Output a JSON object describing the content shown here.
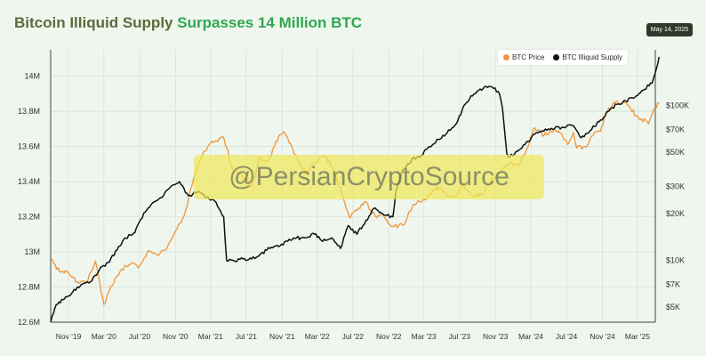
{
  "header": {
    "title_part1": "Bitcoin Illiquid Supply",
    "title_part2": "Surpasses 14 Million BTC",
    "date_badge": "May 14, 2025"
  },
  "watermark": "@PersianCryptoSource",
  "colors": {
    "btc_price": "#f0953a",
    "illiquid_supply": "#111111",
    "grid": "#d6e4d6"
  },
  "chart_data": {
    "type": "line",
    "legend": {
      "position": "top-right",
      "entries": [
        "BTC Price",
        "BTC Illiquid Supply"
      ]
    },
    "grid": true,
    "x_range": [
      "2019-09",
      "2025-05"
    ],
    "x_ticks": [
      {
        "label": "Nov '19",
        "date": "2019-11"
      },
      {
        "label": "Mar '20",
        "date": "2020-03"
      },
      {
        "label": "Jul '20",
        "date": "2020-07"
      },
      {
        "label": "Nov '20",
        "date": "2020-11"
      },
      {
        "label": "Mar '21",
        "date": "2021-03"
      },
      {
        "label": "Jul '21",
        "date": "2021-07"
      },
      {
        "label": "Nov '21",
        "date": "2021-11"
      },
      {
        "label": "Mar '22",
        "date": "2022-03"
      },
      {
        "label": "Jul '22",
        "date": "2022-07"
      },
      {
        "label": "Nov '22",
        "date": "2022-11"
      },
      {
        "label": "Mar '23",
        "date": "2023-03"
      },
      {
        "label": "Jul '23",
        "date": "2023-07"
      },
      {
        "label": "Nov '23",
        "date": "2023-11"
      },
      {
        "label": "Mar '24",
        "date": "2024-03"
      },
      {
        "label": "Jul '24",
        "date": "2024-07"
      },
      {
        "label": "Nov '24",
        "date": "2024-11"
      },
      {
        "label": "Mar '25",
        "date": "2025-03"
      }
    ],
    "y_left": {
      "range": [
        12600000,
        14100000
      ],
      "ticks": [
        {
          "label": "12.6M",
          "value": 12600000
        },
        {
          "label": "12.8M",
          "value": 12800000
        },
        {
          "label": "13M",
          "value": 13000000
        },
        {
          "label": "13.2M",
          "value": 13200000
        },
        {
          "label": "13.4M",
          "value": 13400000
        },
        {
          "label": "13.6M",
          "value": 13600000
        },
        {
          "label": "13.8M",
          "value": 13800000
        },
        {
          "label": "14M",
          "value": 14000000
        }
      ]
    },
    "y_right": {
      "scale": "log",
      "range": [
        4000,
        200000
      ],
      "ticks": [
        {
          "label": "$5K",
          "value": 5000
        },
        {
          "label": "$7K",
          "value": 7000
        },
        {
          "label": "$10K",
          "value": 10000
        },
        {
          "label": "$20K",
          "value": 20000
        },
        {
          "label": "$30K",
          "value": 30000
        },
        {
          "label": "$50K",
          "value": 50000
        },
        {
          "label": "$70K",
          "value": 70000
        },
        {
          "label": "$100K",
          "value": 100000
        }
      ]
    },
    "series": [
      {
        "name": "BTC Price",
        "axis": "right",
        "points": [
          [
            "2019-09-01",
            10200
          ],
          [
            "2019-10-01",
            8500
          ],
          [
            "2019-11-01",
            8400
          ],
          [
            "2019-12-01",
            7300
          ],
          [
            "2020-01-01",
            7200
          ],
          [
            "2020-02-01",
            9900
          ],
          [
            "2020-03-01",
            5200
          ],
          [
            "2020-03-20",
            6400
          ],
          [
            "2020-05-01",
            8800
          ],
          [
            "2020-06-01",
            9500
          ],
          [
            "2020-07-01",
            9200
          ],
          [
            "2020-08-01",
            11600
          ],
          [
            "2020-09-01",
            10800
          ],
          [
            "2020-10-01",
            11800
          ],
          [
            "2020-11-01",
            15500
          ],
          [
            "2020-12-01",
            19500
          ],
          [
            "2021-01-01",
            33000
          ],
          [
            "2021-02-01",
            48000
          ],
          [
            "2021-03-01",
            57000
          ],
          [
            "2021-04-15",
            62000
          ],
          [
            "2021-05-20",
            37000
          ],
          [
            "2021-06-15",
            36000
          ],
          [
            "2021-07-20",
            30000
          ],
          [
            "2021-08-15",
            46000
          ],
          [
            "2021-09-15",
            44000
          ],
          [
            "2021-10-20",
            63000
          ],
          [
            "2021-11-10",
            67000
          ],
          [
            "2021-12-15",
            48000
          ],
          [
            "2022-01-20",
            36000
          ],
          [
            "2022-02-15",
            42000
          ],
          [
            "2022-03-28",
            47000
          ],
          [
            "2022-04-20",
            40000
          ],
          [
            "2022-05-20",
            29000
          ],
          [
            "2022-06-18",
            19000
          ],
          [
            "2022-07-15",
            21000
          ],
          [
            "2022-08-10",
            24000
          ],
          [
            "2022-09-15",
            19500
          ],
          [
            "2022-10-15",
            19300
          ],
          [
            "2022-11-10",
            16500
          ],
          [
            "2022-12-20",
            16800
          ],
          [
            "2023-01-20",
            22000
          ],
          [
            "2023-02-15",
            24000
          ],
          [
            "2023-03-15",
            26000
          ],
          [
            "2023-04-15",
            30000
          ],
          [
            "2023-05-15",
            27000
          ],
          [
            "2023-06-15",
            25500
          ],
          [
            "2023-07-10",
            30500
          ],
          [
            "2023-08-20",
            26000
          ],
          [
            "2023-09-15",
            26500
          ],
          [
            "2023-10-25",
            34000
          ],
          [
            "2023-11-20",
            37000
          ],
          [
            "2023-12-15",
            42000
          ],
          [
            "2024-01-20",
            41000
          ],
          [
            "2024-02-15",
            52000
          ],
          [
            "2024-03-14",
            72000
          ],
          [
            "2024-04-15",
            64000
          ],
          [
            "2024-05-20",
            70000
          ],
          [
            "2024-06-15",
            66000
          ],
          [
            "2024-07-05",
            56000
          ],
          [
            "2024-07-25",
            67000
          ],
          [
            "2024-08-05",
            53000
          ],
          [
            "2024-09-06",
            54000
          ],
          [
            "2024-09-30",
            64000
          ],
          [
            "2024-10-25",
            68000
          ],
          [
            "2024-11-12",
            88000
          ],
          [
            "2024-12-17",
            106000
          ],
          [
            "2025-01-20",
            104000
          ],
          [
            "2025-02-25",
            86000
          ],
          [
            "2025-03-15",
            82000
          ],
          [
            "2025-04-08",
            76000
          ],
          [
            "2025-04-25",
            94000
          ],
          [
            "2025-05-14",
            103000
          ]
        ]
      },
      {
        "name": "BTC Illiquid Supply",
        "axis": "left",
        "points": [
          [
            "2019-09-01",
            12600000
          ],
          [
            "2019-09-20",
            12700000
          ],
          [
            "2019-11-01",
            12750000
          ],
          [
            "2019-12-01",
            12800000
          ],
          [
            "2020-01-15",
            12830000
          ],
          [
            "2020-02-15",
            12900000
          ],
          [
            "2020-03-15",
            12940000
          ],
          [
            "2020-04-15",
            13010000
          ],
          [
            "2020-05-15",
            13080000
          ],
          [
            "2020-06-15",
            13110000
          ],
          [
            "2020-07-15",
            13220000
          ],
          [
            "2020-08-15",
            13280000
          ],
          [
            "2020-09-15",
            13310000
          ],
          [
            "2020-10-15",
            13370000
          ],
          [
            "2020-11-15",
            13400000
          ],
          [
            "2020-12-15",
            13320000
          ],
          [
            "2021-01-15",
            13340000
          ],
          [
            "2021-02-15",
            13310000
          ],
          [
            "2021-03-15",
            13290000
          ],
          [
            "2021-04-15",
            13200000
          ],
          [
            "2021-04-25",
            12950000
          ],
          [
            "2021-05-20",
            12950000
          ],
          [
            "2021-06-20",
            12960000
          ],
          [
            "2021-07-20",
            12960000
          ],
          [
            "2021-08-20",
            12990000
          ],
          [
            "2021-09-20",
            13020000
          ],
          [
            "2021-10-20",
            13030000
          ],
          [
            "2021-11-20",
            13060000
          ],
          [
            "2021-12-20",
            13080000
          ],
          [
            "2022-01-20",
            13080000
          ],
          [
            "2022-02-20",
            13100000
          ],
          [
            "2022-03-20",
            13060000
          ],
          [
            "2022-04-20",
            13080000
          ],
          [
            "2022-05-20",
            13020000
          ],
          [
            "2022-06-15",
            13150000
          ],
          [
            "2022-07-15",
            13100000
          ],
          [
            "2022-08-15",
            13180000
          ],
          [
            "2022-09-15",
            13250000
          ],
          [
            "2022-10-15",
            13210000
          ],
          [
            "2022-11-15",
            13200000
          ],
          [
            "2022-11-25",
            13340000
          ],
          [
            "2022-12-20",
            13470000
          ],
          [
            "2023-01-20",
            13530000
          ],
          [
            "2023-02-20",
            13550000
          ],
          [
            "2023-03-20",
            13600000
          ],
          [
            "2023-04-20",
            13640000
          ],
          [
            "2023-05-20",
            13680000
          ],
          [
            "2023-06-20",
            13730000
          ],
          [
            "2023-07-20",
            13840000
          ],
          [
            "2023-08-20",
            13900000
          ],
          [
            "2023-09-20",
            13930000
          ],
          [
            "2023-10-20",
            13940000
          ],
          [
            "2023-11-15",
            13900000
          ],
          [
            "2023-11-25",
            13820000
          ],
          [
            "2023-12-10",
            13560000
          ],
          [
            "2023-12-20",
            13540000
          ],
          [
            "2024-01-20",
            13580000
          ],
          [
            "2024-02-20",
            13630000
          ],
          [
            "2024-03-20",
            13680000
          ],
          [
            "2024-04-20",
            13700000
          ],
          [
            "2024-05-20",
            13700000
          ],
          [
            "2024-06-20",
            13710000
          ],
          [
            "2024-07-20",
            13720000
          ],
          [
            "2024-08-20",
            13650000
          ],
          [
            "2024-09-20",
            13690000
          ],
          [
            "2024-10-20",
            13740000
          ],
          [
            "2024-11-20",
            13800000
          ],
          [
            "2024-12-20",
            13840000
          ],
          [
            "2025-01-20",
            13860000
          ],
          [
            "2025-02-20",
            13880000
          ],
          [
            "2025-03-20",
            13920000
          ],
          [
            "2025-04-20",
            13960000
          ],
          [
            "2025-05-14",
            14110000
          ]
        ]
      }
    ]
  }
}
